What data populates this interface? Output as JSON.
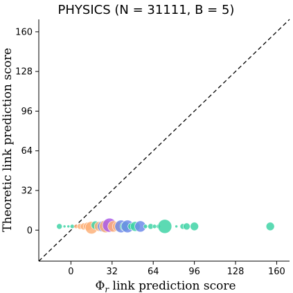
{
  "chart_data": {
    "type": "scatter",
    "title": "PHYSICS (N = 31111, B = 5)",
    "xlabel": "Φ_r link prediction score",
    "xlabel_main": "Φ",
    "xlabel_sub": "r",
    "xlabel_rest": " link prediction score",
    "ylabel": "Theoretic link prediction score",
    "xlim": [
      -25,
      170
    ],
    "ylim": [
      -25,
      170
    ],
    "xticks": [
      0,
      32,
      64,
      96,
      128,
      160
    ],
    "yticks": [
      0,
      32,
      64,
      96,
      128,
      160
    ],
    "grid": false,
    "reference_line": "y = x (dashed)",
    "colors": {
      "orange": "#fdb17a",
      "purple": "#ab5ce8",
      "blue": "#6f8bea",
      "teal": "#3fd3a6",
      "axis": "#000000"
    },
    "points": [
      {
        "x": -9,
        "y": 3,
        "r": 4,
        "color": "teal"
      },
      {
        "x": -5,
        "y": 3,
        "r": 2,
        "color": "teal"
      },
      {
        "x": -2,
        "y": 3,
        "r": 2,
        "color": "teal"
      },
      {
        "x": 1,
        "y": 3,
        "r": 3,
        "color": "teal"
      },
      {
        "x": 4,
        "y": 3,
        "r": 3,
        "color": "orange"
      },
      {
        "x": 7,
        "y": 3,
        "r": 4,
        "color": "orange"
      },
      {
        "x": 10,
        "y": 3,
        "r": 5,
        "color": "orange"
      },
      {
        "x": 13,
        "y": 3,
        "r": 6,
        "color": "orange"
      },
      {
        "x": 16,
        "y": 2,
        "r": 9,
        "color": "orange"
      },
      {
        "x": 19,
        "y": 4,
        "r": 6,
        "color": "teal"
      },
      {
        "x": 22,
        "y": 3,
        "r": 7,
        "color": "orange"
      },
      {
        "x": 25,
        "y": 3,
        "r": 8,
        "color": "blue"
      },
      {
        "x": 27,
        "y": 3,
        "r": 9,
        "color": "orange"
      },
      {
        "x": 30,
        "y": 4,
        "r": 10,
        "color": "purple"
      },
      {
        "x": 33,
        "y": 3,
        "r": 8,
        "color": "orange"
      },
      {
        "x": 36,
        "y": 3,
        "r": 7,
        "color": "orange"
      },
      {
        "x": 39,
        "y": 3,
        "r": 9,
        "color": "blue"
      },
      {
        "x": 42,
        "y": 3,
        "r": 7,
        "color": "teal"
      },
      {
        "x": 44,
        "y": 3,
        "r": 9,
        "color": "blue"
      },
      {
        "x": 47,
        "y": 3,
        "r": 5,
        "color": "teal"
      },
      {
        "x": 50,
        "y": 3,
        "r": 7,
        "color": "teal"
      },
      {
        "x": 54,
        "y": 3,
        "r": 8,
        "color": "blue"
      },
      {
        "x": 58,
        "y": 3,
        "r": 3,
        "color": "teal"
      },
      {
        "x": 62,
        "y": 3,
        "r": 4,
        "color": "teal"
      },
      {
        "x": 65,
        "y": 3,
        "r": 3,
        "color": "teal"
      },
      {
        "x": 68,
        "y": 3,
        "r": 3,
        "color": "teal"
      },
      {
        "x": 73,
        "y": 3,
        "r": 10,
        "color": "teal"
      },
      {
        "x": 82,
        "y": 3,
        "r": 2,
        "color": "teal"
      },
      {
        "x": 87,
        "y": 3,
        "r": 4,
        "color": "teal"
      },
      {
        "x": 90,
        "y": 3,
        "r": 5,
        "color": "teal"
      },
      {
        "x": 96,
        "y": 3,
        "r": 6,
        "color": "teal"
      },
      {
        "x": 155,
        "y": 3,
        "r": 6,
        "color": "teal"
      }
    ]
  }
}
